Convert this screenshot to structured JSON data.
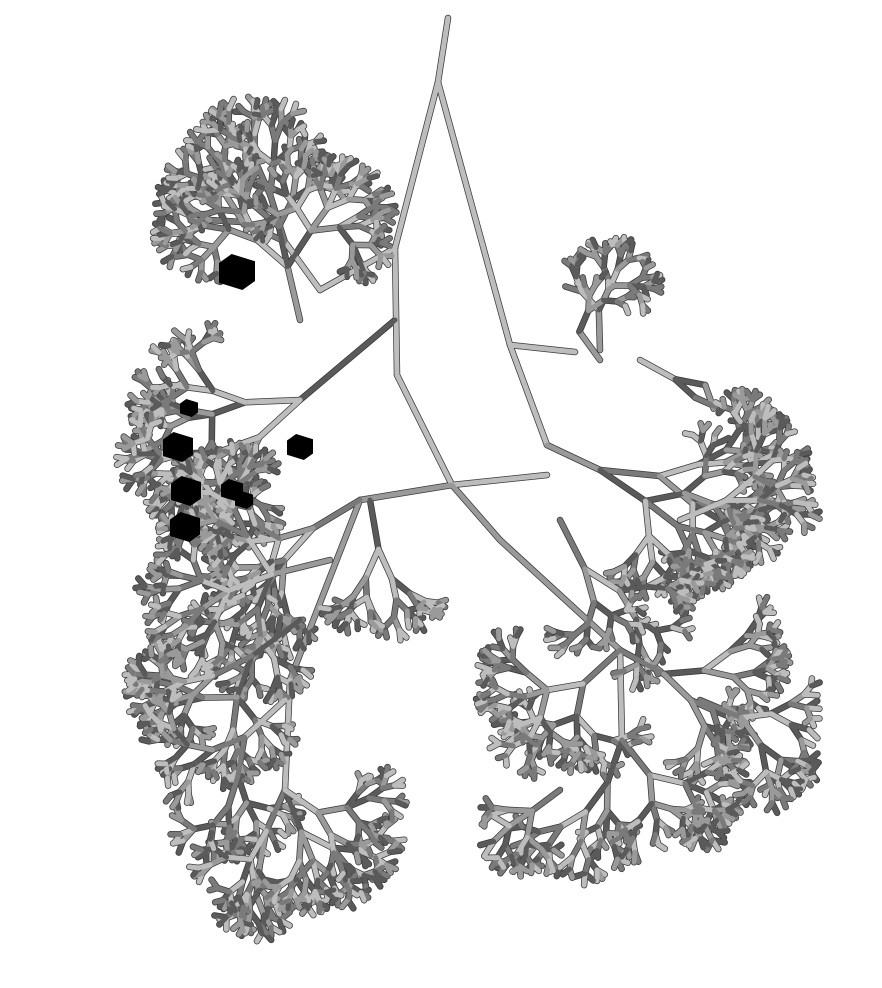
{
  "scene": {
    "subject": "branching-airway-tree",
    "background_color": "#ffffff",
    "branch_colors": [
      "#bdbdbd",
      "#9a9a9a",
      "#7a7a7a",
      "#5a5a5a"
    ],
    "outline_color": "#3a3a3a",
    "marker_color": "#000000",
    "marker_shape": "cube",
    "marker_count": 8
  }
}
